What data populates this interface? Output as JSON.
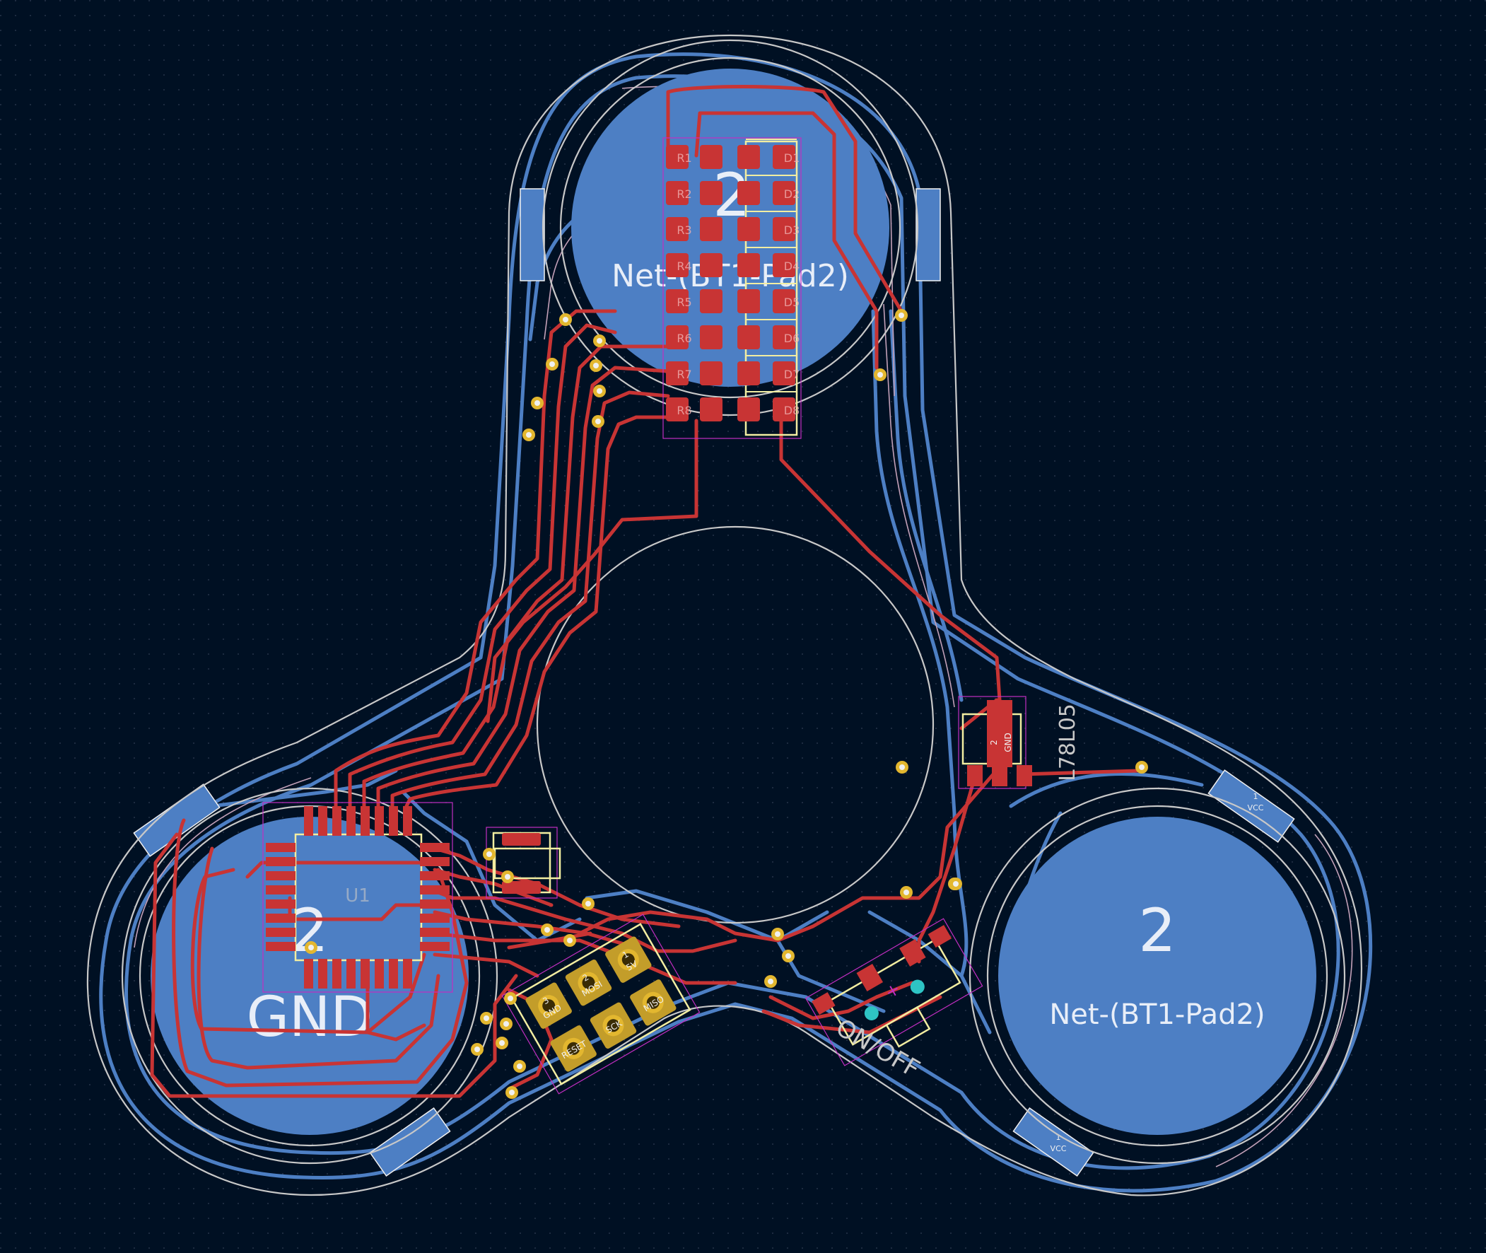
{
  "labels": {
    "pad_top_num": "2",
    "pad_top_net": "Net-(BT1-Pad2)",
    "pad_left_num": "2",
    "pad_left_net": "GND",
    "pad_right_num": "2",
    "pad_right_net": "Net-(BT1-Pad2)",
    "regulator_ref": "L78L05",
    "regulator_pad_num": "2",
    "regulator_pad_net": "GND",
    "switch_label": "ON/OFF",
    "mcu_ref": "U1",
    "vcc_pad_num": "1",
    "vcc_pad_net": "VCC"
  },
  "led_refs": {
    "resistors": [
      "R1",
      "R2",
      "R3",
      "R4",
      "R5",
      "R6",
      "R7",
      "R8"
    ],
    "leds": [
      "D1",
      "D2",
      "D3",
      "D4",
      "D5",
      "D6",
      "D7",
      "D8"
    ]
  },
  "isp_header": [
    "3",
    "2",
    "1",
    "GND",
    "MOSI",
    "5V",
    "RESET",
    "SCK",
    "MISO"
  ],
  "colors": {
    "background": "#001023",
    "back_copper": "#4d7fc4",
    "front_copper": "#c83434",
    "silkscreen": "#f2eda1",
    "edge_cuts": "#c8c8c8",
    "courtyard": "#c22ec2",
    "via": "#e3b72f",
    "through_hole_drill": "#2ec4c4"
  }
}
